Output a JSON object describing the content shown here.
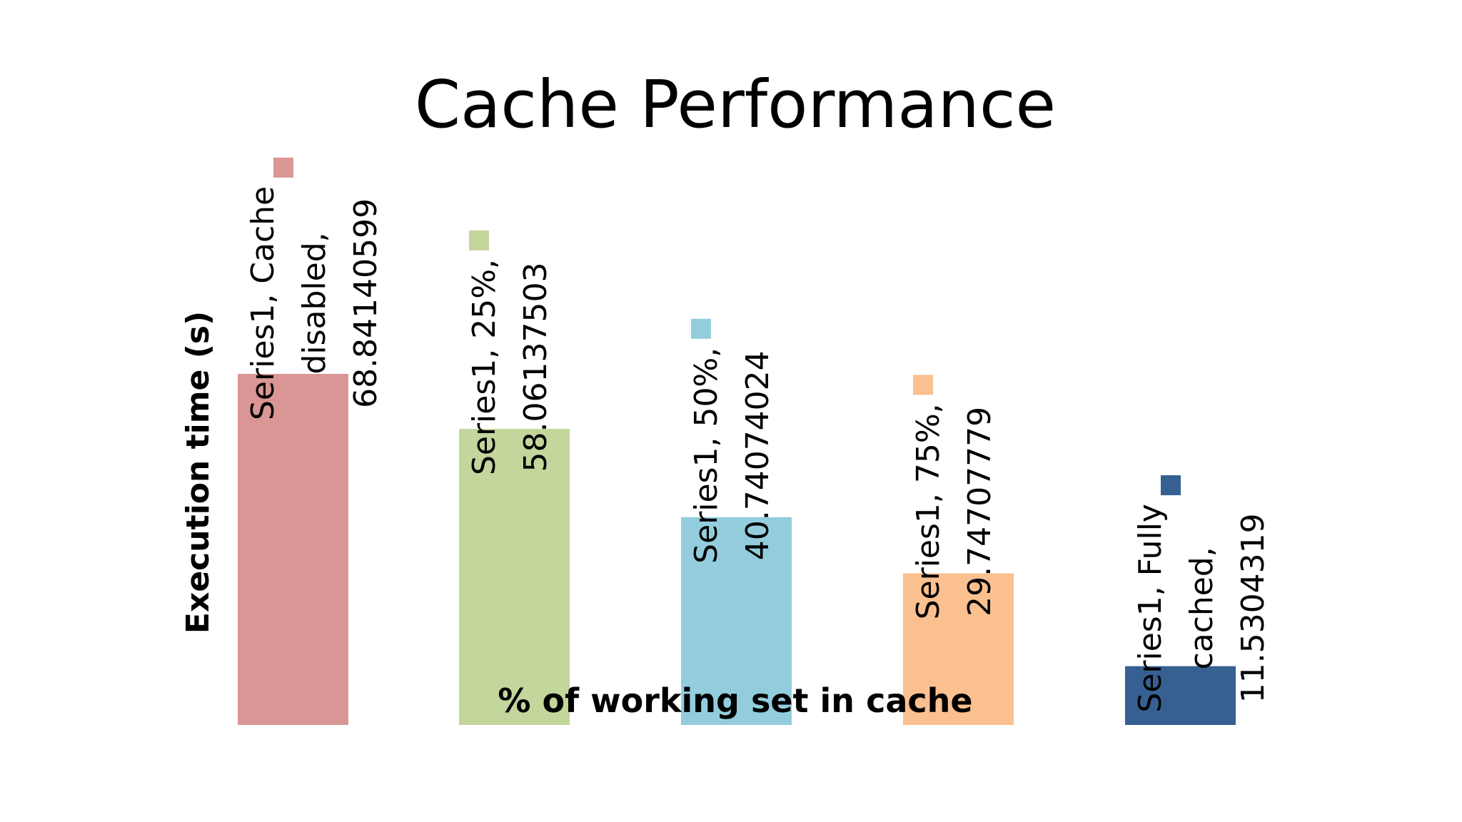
{
  "chart_data": {
    "type": "bar",
    "title": "Cache Performance",
    "xlabel": "% of working set in cache",
    "ylabel": "Execution time (s)",
    "categories": [
      "Cache disabled",
      "25%",
      "50%",
      "75%",
      "Fully cached"
    ],
    "series": [
      {
        "name": "Series1",
        "values": [
          68.84140599,
          58.06137503,
          40.74074024,
          29.74707779,
          11.5304319
        ]
      }
    ],
    "colors": [
      "#d99694",
      "#c3d69b",
      "#93cddd",
      "#fac090",
      "#376092"
    ],
    "data_labels": [
      [
        "Series1, Cache",
        "disabled,",
        "68.84140599"
      ],
      [
        "Series1, 25%,",
        "58.06137503"
      ],
      [
        "Series1, 50%,",
        "40.74074024"
      ],
      [
        "Series1, 75%,",
        "29.74707779"
      ],
      [
        "Series1, Fully",
        "cached,",
        "11.5304319"
      ]
    ],
    "ylim": [
      0,
      68.84140599
    ],
    "grid": false,
    "legend": "none"
  }
}
